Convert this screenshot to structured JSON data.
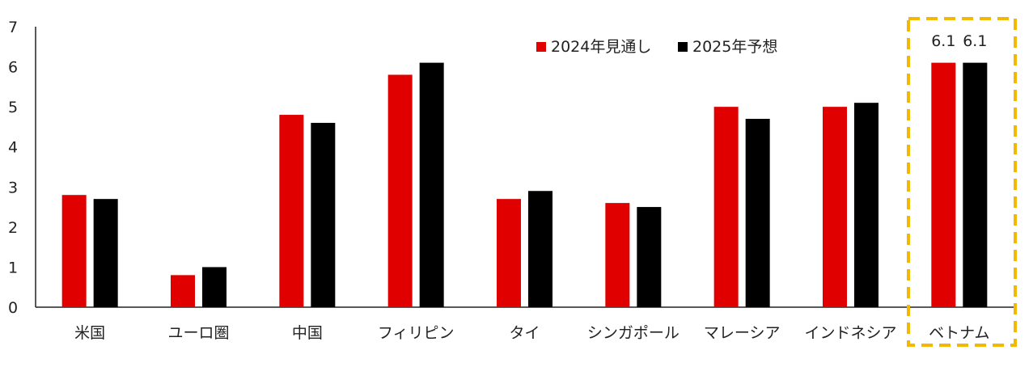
{
  "chart_data": {
    "type": "bar",
    "categories": [
      "米国",
      "ユーロ圏",
      "中国",
      "フィリピン",
      "タイ",
      "シンガポール",
      "マレーシア",
      "インドネシア",
      "ベトナム"
    ],
    "series": [
      {
        "name": "2024年見通し",
        "color": "#e00000",
        "values": [
          2.8,
          0.8,
          4.8,
          5.8,
          2.7,
          2.6,
          5.0,
          5.0,
          6.1
        ]
      },
      {
        "name": "2025年予想",
        "color": "#000000",
        "values": [
          2.7,
          1.0,
          4.6,
          6.1,
          2.9,
          2.5,
          4.7,
          5.1,
          6.1
        ]
      }
    ],
    "ylim": [
      0,
      7
    ],
    "yticks": [
      "0",
      "1",
      "2",
      "3",
      "4",
      "5",
      "6",
      "7"
    ],
    "legend_placement": "top-right",
    "grid": false,
    "highlight": {
      "category": "ベトナム",
      "border_color": "#f5b800",
      "labels": [
        "6.1",
        "6.1"
      ]
    }
  }
}
